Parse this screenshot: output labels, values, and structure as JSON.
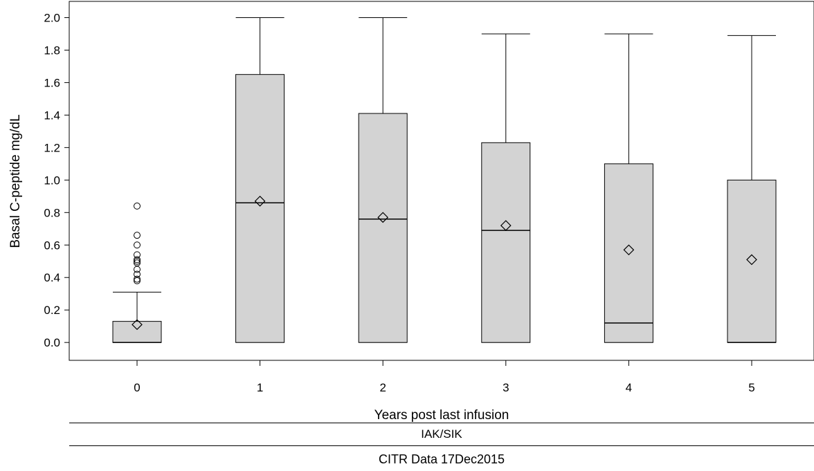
{
  "chart_data": {
    "type": "box",
    "xlabel": "Years post last infusion",
    "ylabel": "Basal C-peptide mg/dL",
    "ylim": [
      -0.11,
      2.1
    ],
    "yticks": [
      "0.0",
      "0.2",
      "0.4",
      "0.6",
      "0.8",
      "1.0",
      "1.2",
      "1.4",
      "1.6",
      "1.8",
      "2.0"
    ],
    "categories": [
      "0",
      "1",
      "2",
      "3",
      "4",
      "5"
    ],
    "boxes": [
      {
        "category": "0",
        "min": 0.0,
        "q1": 0.0,
        "median": 0.0,
        "q3": 0.13,
        "max": 0.31,
        "mean": 0.11,
        "outliers": [
          0.84,
          0.66,
          0.6,
          0.54,
          0.51,
          0.5,
          0.49,
          0.45,
          0.42,
          0.39,
          0.38
        ]
      },
      {
        "category": "1",
        "min": 0.0,
        "q1": 0.0,
        "median": 0.86,
        "q3": 1.65,
        "max": 2.0,
        "mean": 0.87,
        "outliers": []
      },
      {
        "category": "2",
        "min": 0.0,
        "q1": 0.0,
        "median": 0.76,
        "q3": 1.41,
        "max": 2.0,
        "mean": 0.77,
        "outliers": []
      },
      {
        "category": "3",
        "min": 0.0,
        "q1": 0.0,
        "median": 0.69,
        "q3": 1.23,
        "max": 1.9,
        "mean": 0.72,
        "outliers": []
      },
      {
        "category": "4",
        "min": 0.0,
        "q1": 0.0,
        "median": 0.12,
        "q3": 1.1,
        "max": 1.9,
        "mean": 0.57,
        "outliers": []
      },
      {
        "category": "5",
        "min": 0.0,
        "q1": 0.0,
        "median": 0.0,
        "q3": 1.0,
        "max": 1.89,
        "mean": 0.51,
        "outliers": []
      }
    ],
    "group_label": "IAK/SIK",
    "footnote": "CITR  Data 17Dec2015",
    "colors": {
      "box_fill": "#d3d3d3",
      "stroke": "#000000"
    }
  }
}
